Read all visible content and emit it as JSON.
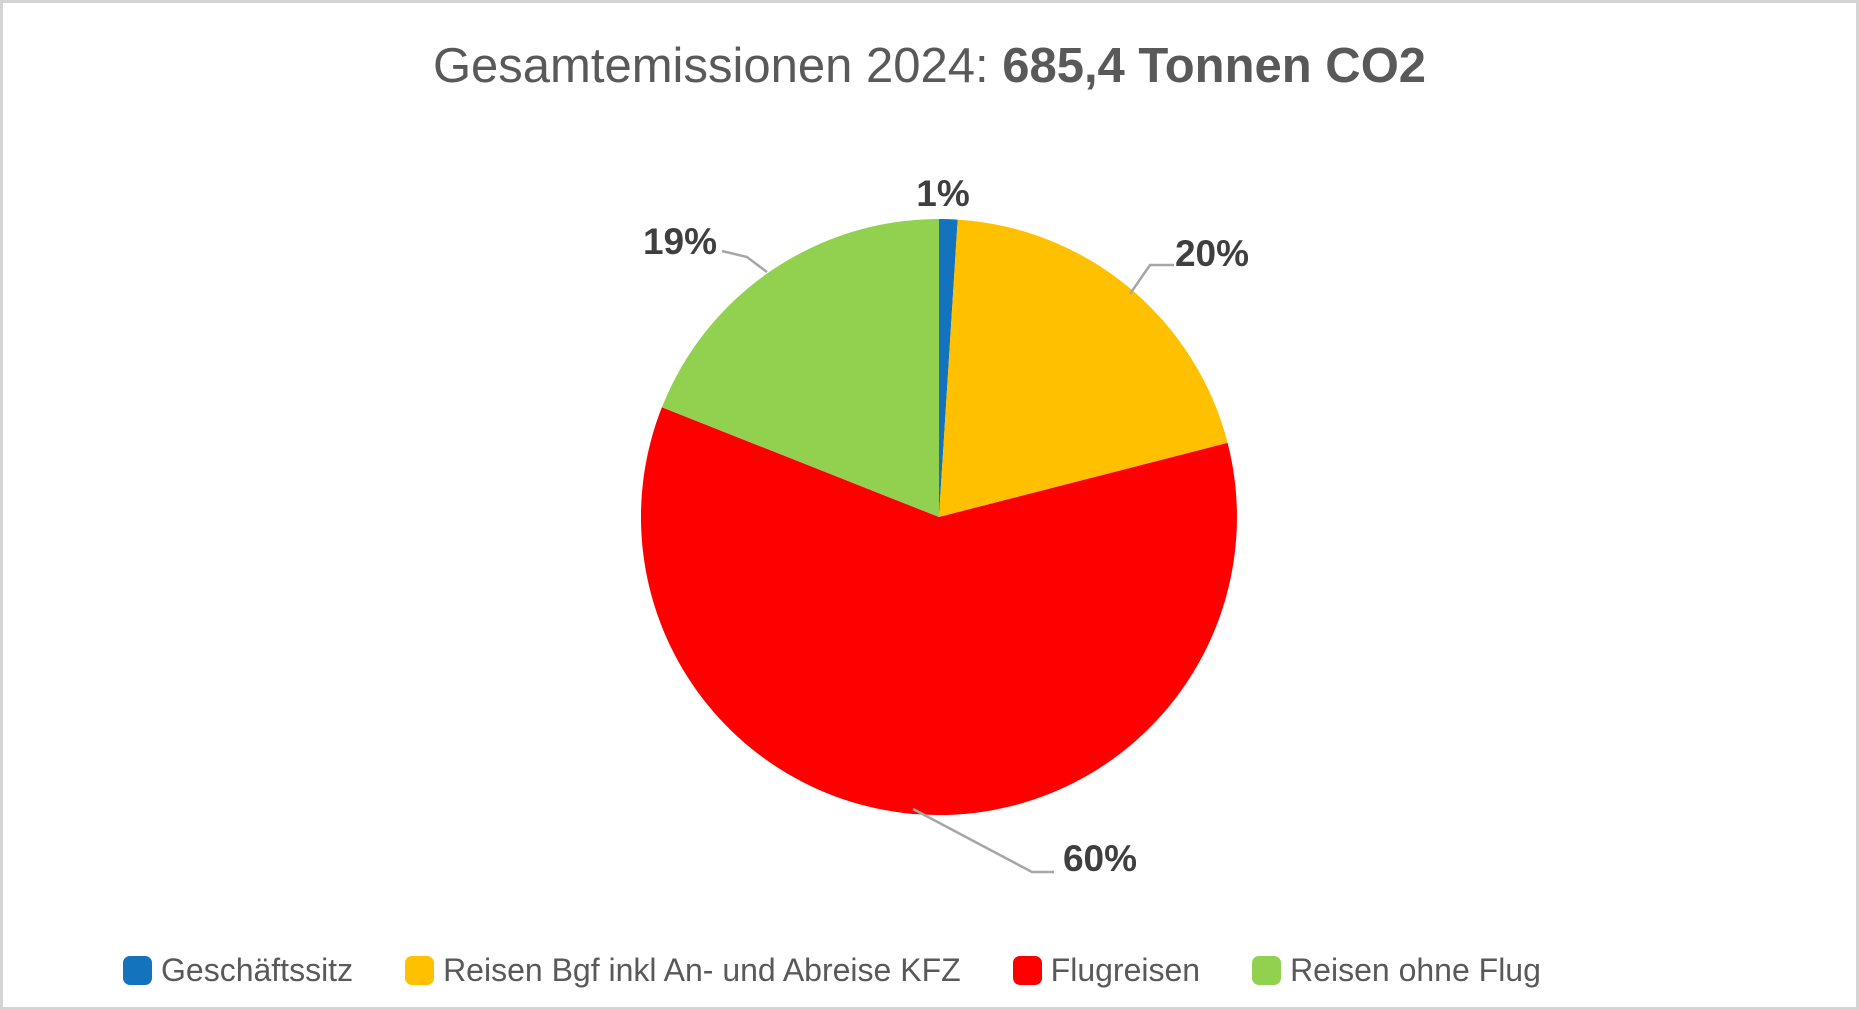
{
  "title": {
    "prefix": "Gesamtemissionen 2024: ",
    "emphasis": "685,4 Tonnen CO2"
  },
  "chart_data": {
    "type": "pie",
    "title": "Gesamtemissionen 2024: 685,4 Tonnen CO2",
    "total_shown_in_title": "685,4 Tonnen CO2",
    "value_unit": "%",
    "value_format": "percent",
    "start_angle_deg": 0,
    "direction": "clockwise",
    "legend_position": "bottom",
    "slices": [
      {
        "label": "Geschäftssitz",
        "value": 1,
        "color": "#1473BD"
      },
      {
        "label": "Reisen Bgf inkl An- und Abreise KFZ",
        "value": 20,
        "color": "#FFC000"
      },
      {
        "label": "Flugreisen",
        "value": 60,
        "color": "#FF0000"
      },
      {
        "label": "Reisen ohne Flug",
        "value": 19,
        "color": "#92D050"
      }
    ],
    "data_labels": [
      "1%",
      "20%",
      "60%",
      "19%"
    ]
  },
  "colors": {
    "background": "#FFFFFF",
    "frame_border": "#D4D4D4",
    "title_text": "#595959",
    "data_label_text": "#3F3F3F",
    "legend_text": "#595959",
    "leader_line": "#A6A6A6"
  }
}
